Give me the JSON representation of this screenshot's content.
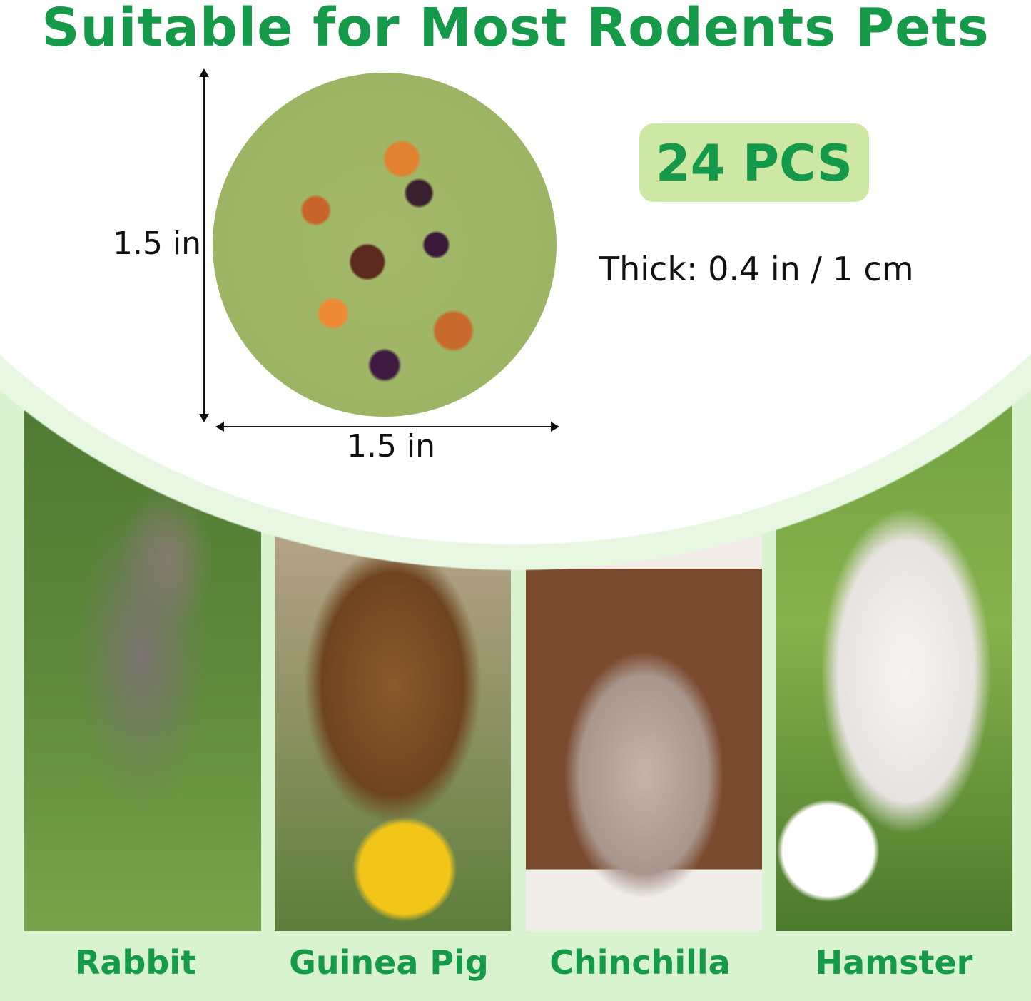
{
  "title": "Suitable for Most Rodents Pets",
  "product": {
    "height_label": "1.5 in",
    "width_label": "1.5 in",
    "count_badge": "24 PCS",
    "thickness": "Thick: 0.4 in / 1 cm"
  },
  "pets": [
    {
      "label": "Rabbit"
    },
    {
      "label": "Guinea Pig"
    },
    {
      "label": "Chinchilla"
    },
    {
      "label": "Hamster"
    }
  ],
  "colors": {
    "accent_green": "#149a48",
    "badge_bg": "#cde7a4",
    "background": "#d9f2cf"
  }
}
